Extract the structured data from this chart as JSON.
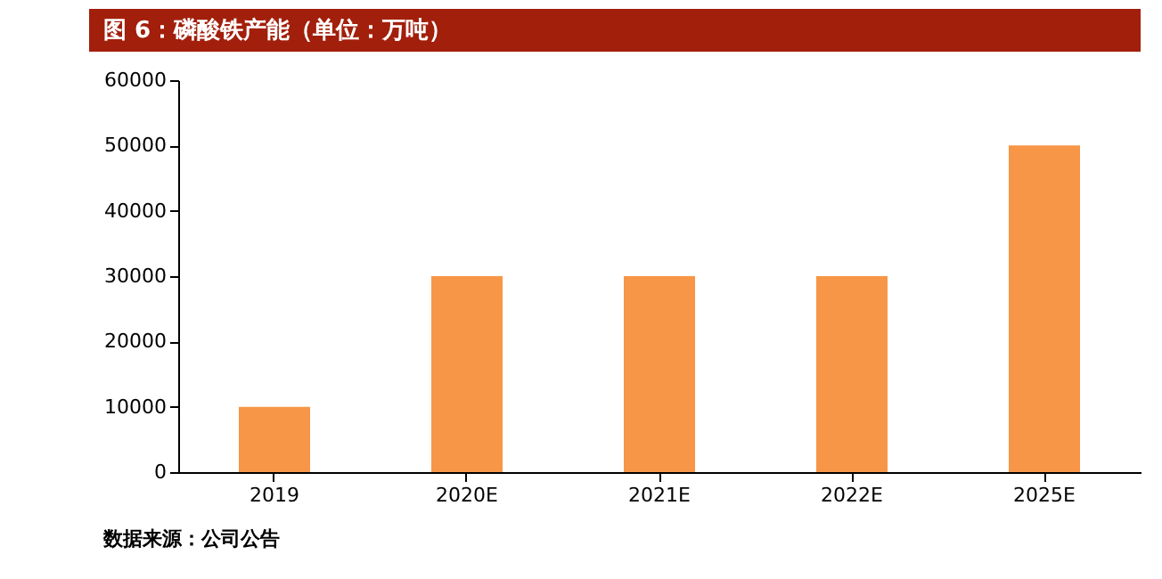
{
  "chart_data": {
    "type": "bar",
    "title": "图 6：磷酸铁产能（单位：万吨）",
    "categories": [
      "2019",
      "2020E",
      "2021E",
      "2022E",
      "2025E"
    ],
    "values": [
      10000,
      30000,
      30000,
      30000,
      50000
    ],
    "color": "#f79646",
    "ylim": [
      0,
      60000
    ],
    "yticks": [
      0,
      10000,
      20000,
      30000,
      40000,
      50000,
      60000
    ],
    "grid": false,
    "annotations": [
      "数据来源：公司公告"
    ]
  }
}
